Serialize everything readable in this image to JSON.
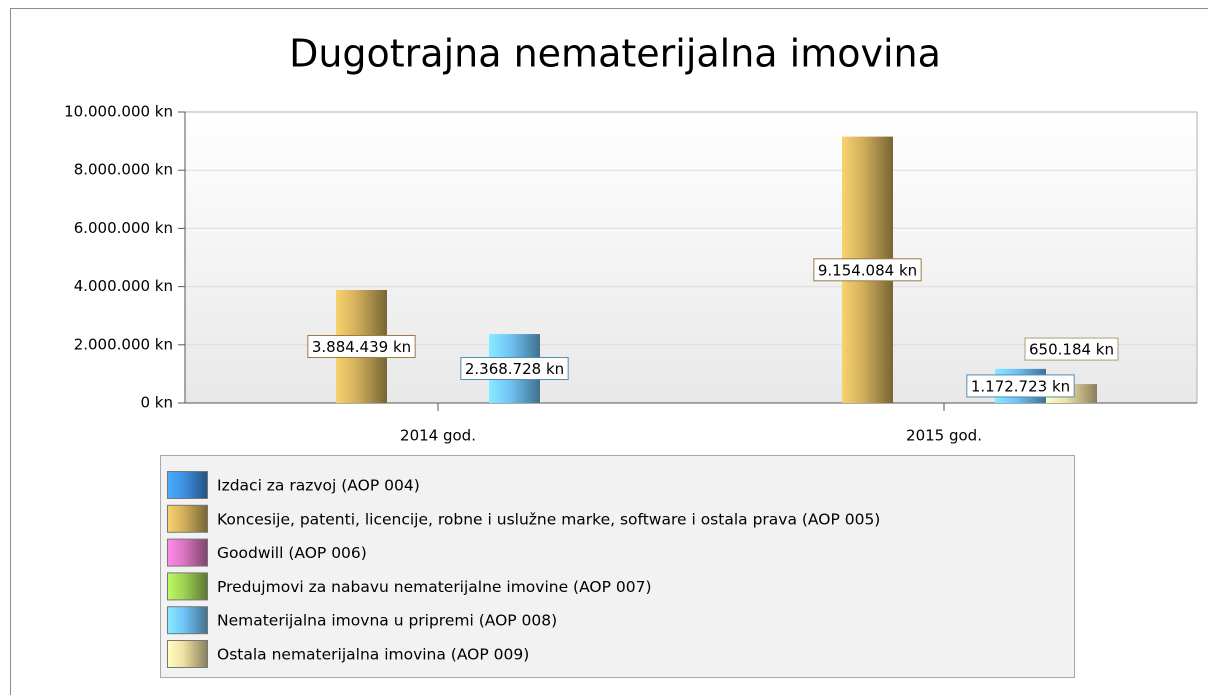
{
  "chart_data": {
    "type": "bar",
    "title": "Dugotrajna nematerijalna imovina",
    "categories": [
      "2014 god.",
      "2015 god."
    ],
    "series": [
      {
        "name": "Izdaci za razvoj (AOP 004)",
        "color": "#3a8ad8",
        "values": [
          null,
          null
        ]
      },
      {
        "name": "Koncesije, patenti, licencije, robne i uslužne marke, software i ostala prava (AOP 005)",
        "color": "#c8a858",
        "values": [
          3884439,
          9154084
        ],
        "value_labels": [
          "3.884.439 kn",
          "9.154.084 kn"
        ]
      },
      {
        "name": "Goodwill (AOP 006)",
        "color": "#d070b8",
        "values": [
          null,
          null
        ]
      },
      {
        "name": "Predujmovi za nabavu nematerijalne imovine (AOP 007)",
        "color": "#98c850",
        "values": [
          null,
          null
        ]
      },
      {
        "name": "Nematerijalna imovna u pripremi (AOP 008)",
        "color": "#6cbcec",
        "values": [
          2368728,
          1172723
        ],
        "value_labels": [
          "2.368.728 kn",
          "1.172.723 kn"
        ]
      },
      {
        "name": "Ostala nematerijalna imovina (AOP 009)",
        "color": "#e4d49a",
        "values": [
          null,
          650184
        ],
        "value_labels": [
          null,
          "650.184 kn"
        ]
      }
    ],
    "ylim": [
      0,
      10000000
    ],
    "yticks": [
      {
        "value": 0,
        "label": "0 kn"
      },
      {
        "value": 2000000,
        "label": "2.000.000 kn"
      },
      {
        "value": 4000000,
        "label": "4.000.000 kn"
      },
      {
        "value": 6000000,
        "label": "6.000.000 kn"
      },
      {
        "value": 8000000,
        "label": "8.000.000 kn"
      },
      {
        "value": 10000000,
        "label": "10.000.000 kn"
      }
    ],
    "grid": true
  }
}
